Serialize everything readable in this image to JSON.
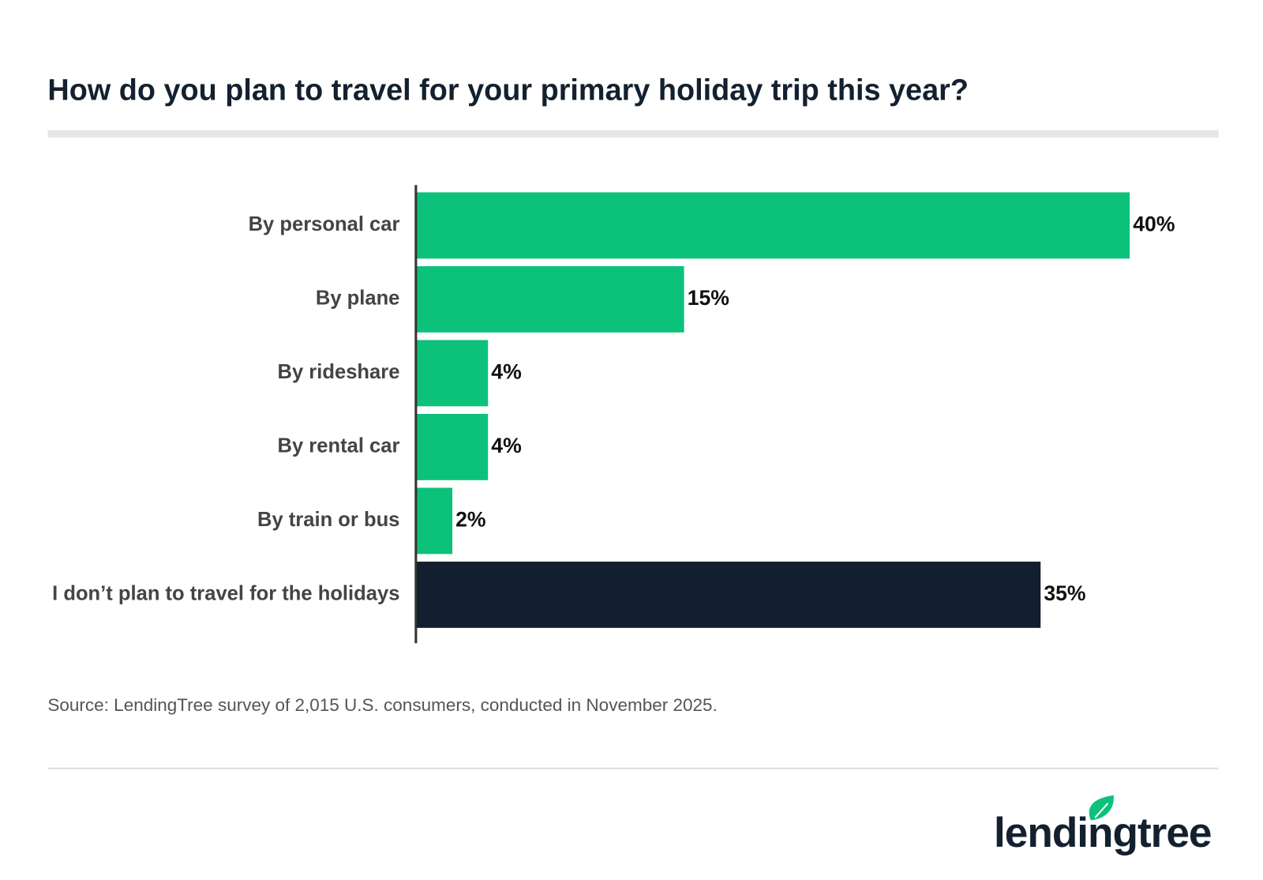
{
  "chart_data": {
    "type": "bar",
    "title": "How do you plan to travel for your primary holiday trip this year?",
    "categories": [
      "By personal car",
      "By plane",
      "By rideshare",
      "By rental car",
      "By train or bus",
      "I don’t plan to travel for the holidays"
    ],
    "values": [
      40,
      15,
      4,
      4,
      2,
      35
    ],
    "value_labels": [
      "40%",
      "15%",
      "4%",
      "4%",
      "2%",
      "35%"
    ],
    "colors": [
      "#0cc27a",
      "#0cc27a",
      "#0cc27a",
      "#0cc27a",
      "#0cc27a",
      "#131f2e"
    ],
    "source": "Source: LendingTree survey of 2,015 U.S. consumers, conducted in November 2025.",
    "logo": "lendingtree"
  }
}
